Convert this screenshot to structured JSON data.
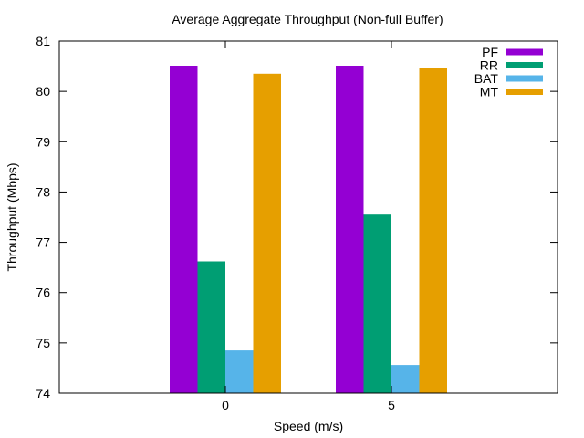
{
  "chart_data": {
    "type": "bar",
    "title": "Average Aggregate Throughput (Non-full Buffer)",
    "xlabel": "Speed (m/s)",
    "ylabel": "Throughput (Mbps)",
    "categories": [
      "0",
      "5"
    ],
    "ylim": [
      74,
      81
    ],
    "yticks": [
      74,
      75,
      76,
      77,
      78,
      79,
      80,
      81
    ],
    "grid": false,
    "legend_position": "top-right",
    "series": [
      {
        "name": "PF",
        "color": "#9400d3",
        "values": [
          80.51,
          80.51
        ]
      },
      {
        "name": "RR",
        "color": "#009e73",
        "values": [
          76.62,
          77.55
        ]
      },
      {
        "name": "BAT",
        "color": "#56b4e9",
        "values": [
          74.85,
          74.56
        ]
      },
      {
        "name": "MT",
        "color": "#e69f00",
        "values": [
          80.35,
          80.47
        ]
      }
    ]
  }
}
